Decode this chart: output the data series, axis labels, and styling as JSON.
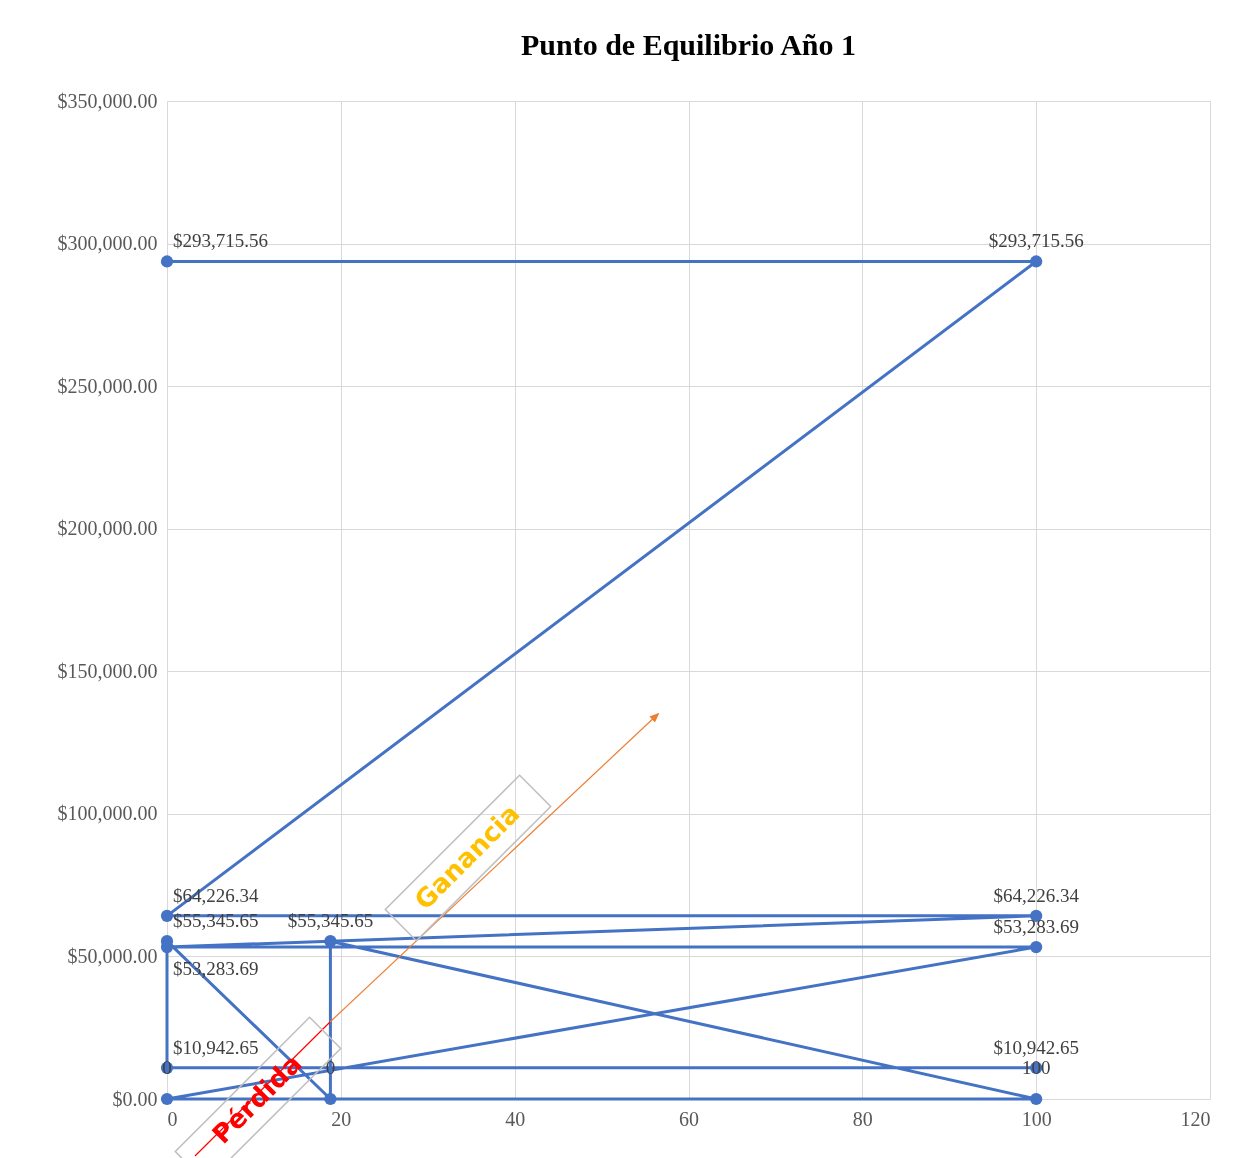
{
  "chart_data": {
    "type": "line",
    "title": "Punto de Equilibrio Año 1",
    "xlim": [
      0,
      120
    ],
    "xticks": [
      0,
      20,
      40,
      60,
      80,
      100,
      120
    ],
    "ylim": [
      0,
      350000
    ],
    "yticks": [
      {
        "value": 0,
        "label": "$0.00"
      },
      {
        "value": 50000,
        "label": "$50,000.00"
      },
      {
        "value": 100000,
        "label": "$100,000.00"
      },
      {
        "value": 150000,
        "label": "$150,000.00"
      },
      {
        "value": 200000,
        "label": "$200,000.00"
      },
      {
        "value": 250000,
        "label": "$250,000.00"
      },
      {
        "value": 300000,
        "label": "$300,000.00"
      },
      {
        "value": 350000,
        "label": "$350,000.00"
      }
    ],
    "grid": true,
    "marker": "circle",
    "line_style": "solid",
    "series": [
      {
        "color": "#4472c4",
        "x": [
          0,
          100,
          0,
          100,
          0,
          100,
          0,
          100,
          18.8,
          18.8,
          0,
          0,
          100
        ],
        "values": [
          293715.56,
          293715.56,
          64226.34,
          64226.34,
          53283.69,
          53283.69,
          0,
          0,
          55345.65,
          0,
          55345.65,
          10942.65,
          10942.65
        ],
        "value_labels": [
          "$293,715.56",
          "$293,715.56",
          "$64,226.34",
          "$64,226.34",
          "$53,283.69",
          "$53,283.69",
          null,
          null,
          "$55,345.65",
          null,
          "$55,345.65",
          "$10,942.65",
          "$10,942.65"
        ]
      }
    ],
    "annotations": [
      "Ganancia",
      "Pérdida",
      {
        "text": "0",
        "x": 0,
        "y": 10942.65
      },
      {
        "text": "0",
        "x": 18.8,
        "y": 10942.65
      },
      {
        "text": "100",
        "x": 100,
        "y": 10942.65
      }
    ]
  }
}
